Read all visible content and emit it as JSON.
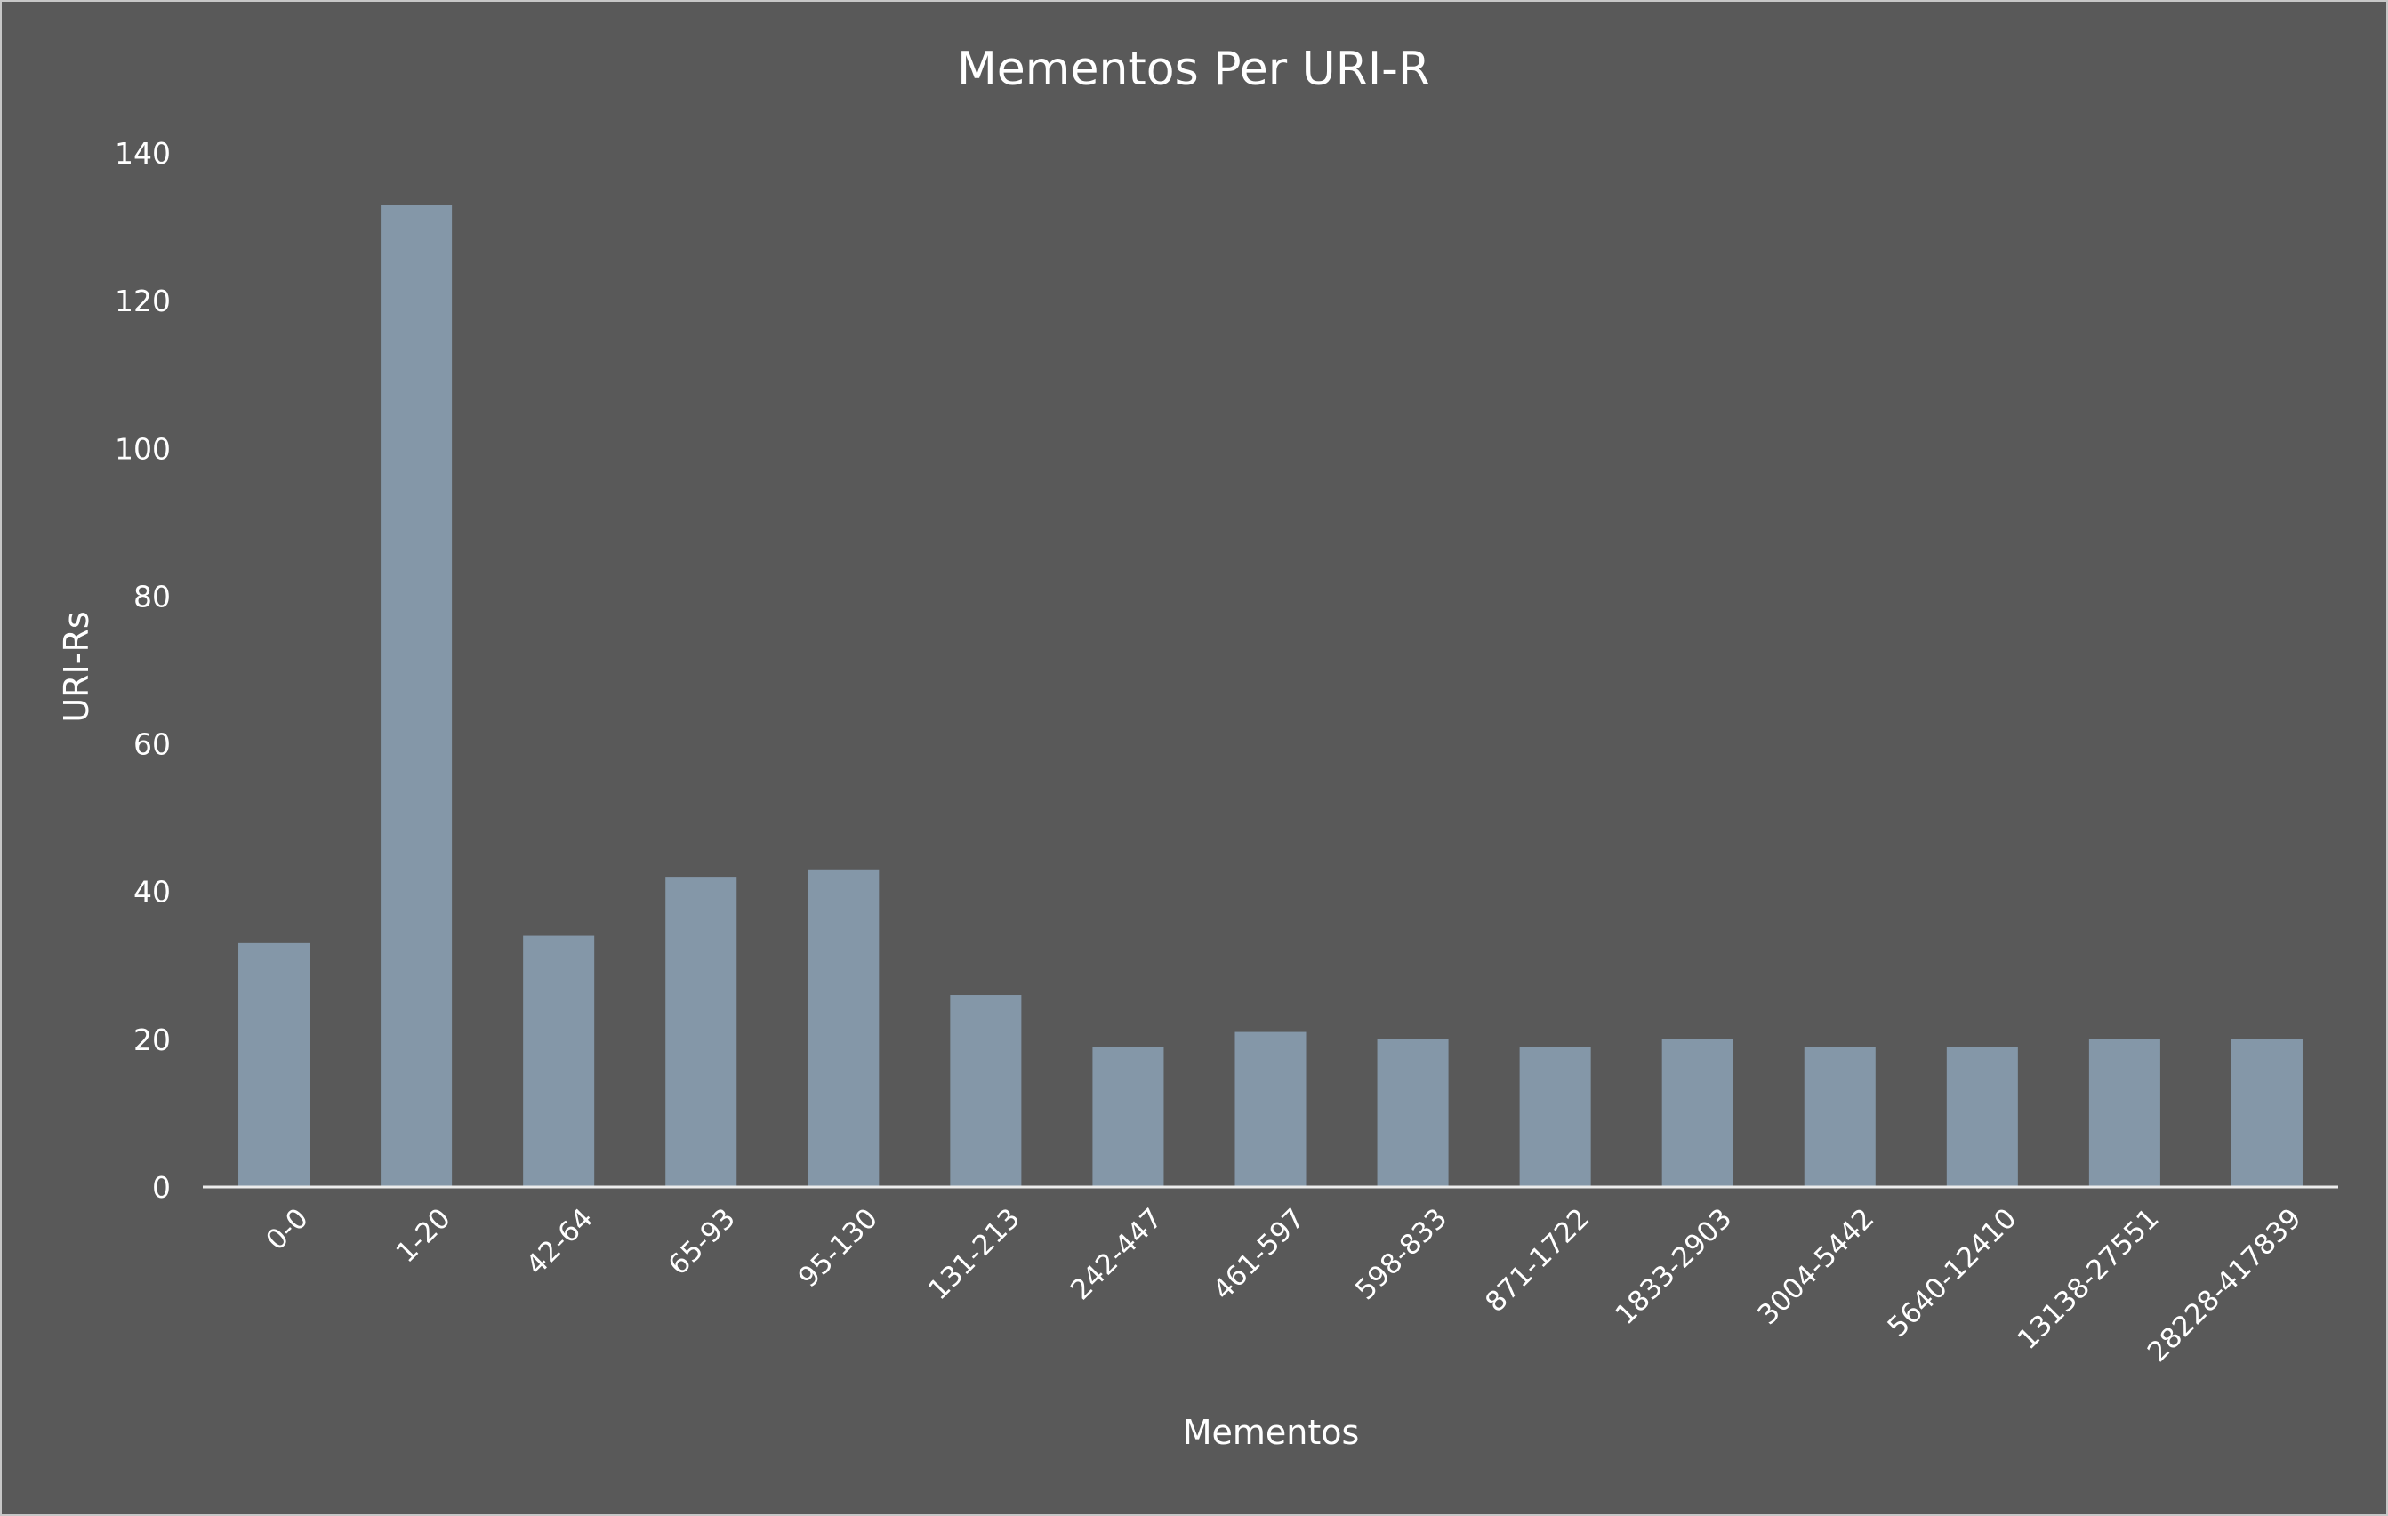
{
  "chart_data": {
    "type": "bar",
    "title": "Mementos Per URI-R",
    "xlabel": "Mementos",
    "ylabel": "URI-Rs",
    "categories": [
      "0-0",
      "1-20",
      "42-64",
      "65-93",
      "95-130",
      "131-213",
      "242-447",
      "461-597",
      "598-833",
      "871-1722",
      "1833-2903",
      "3004-5442",
      "5640-12410",
      "13138-27551",
      "28228-417839"
    ],
    "values": [
      33,
      133,
      34,
      42,
      43,
      26,
      19,
      21,
      20,
      19,
      20,
      19,
      19,
      20,
      20
    ],
    "ylim": [
      0,
      140
    ],
    "yticks": [
      "0",
      "20",
      "40",
      "60",
      "80",
      "100",
      "120",
      "140"
    ],
    "grid": false,
    "legend": "none",
    "colors": {
      "background": "#595959",
      "bar": "#8497a8",
      "text": "#ffffff",
      "axis_line": "#ececec"
    }
  }
}
